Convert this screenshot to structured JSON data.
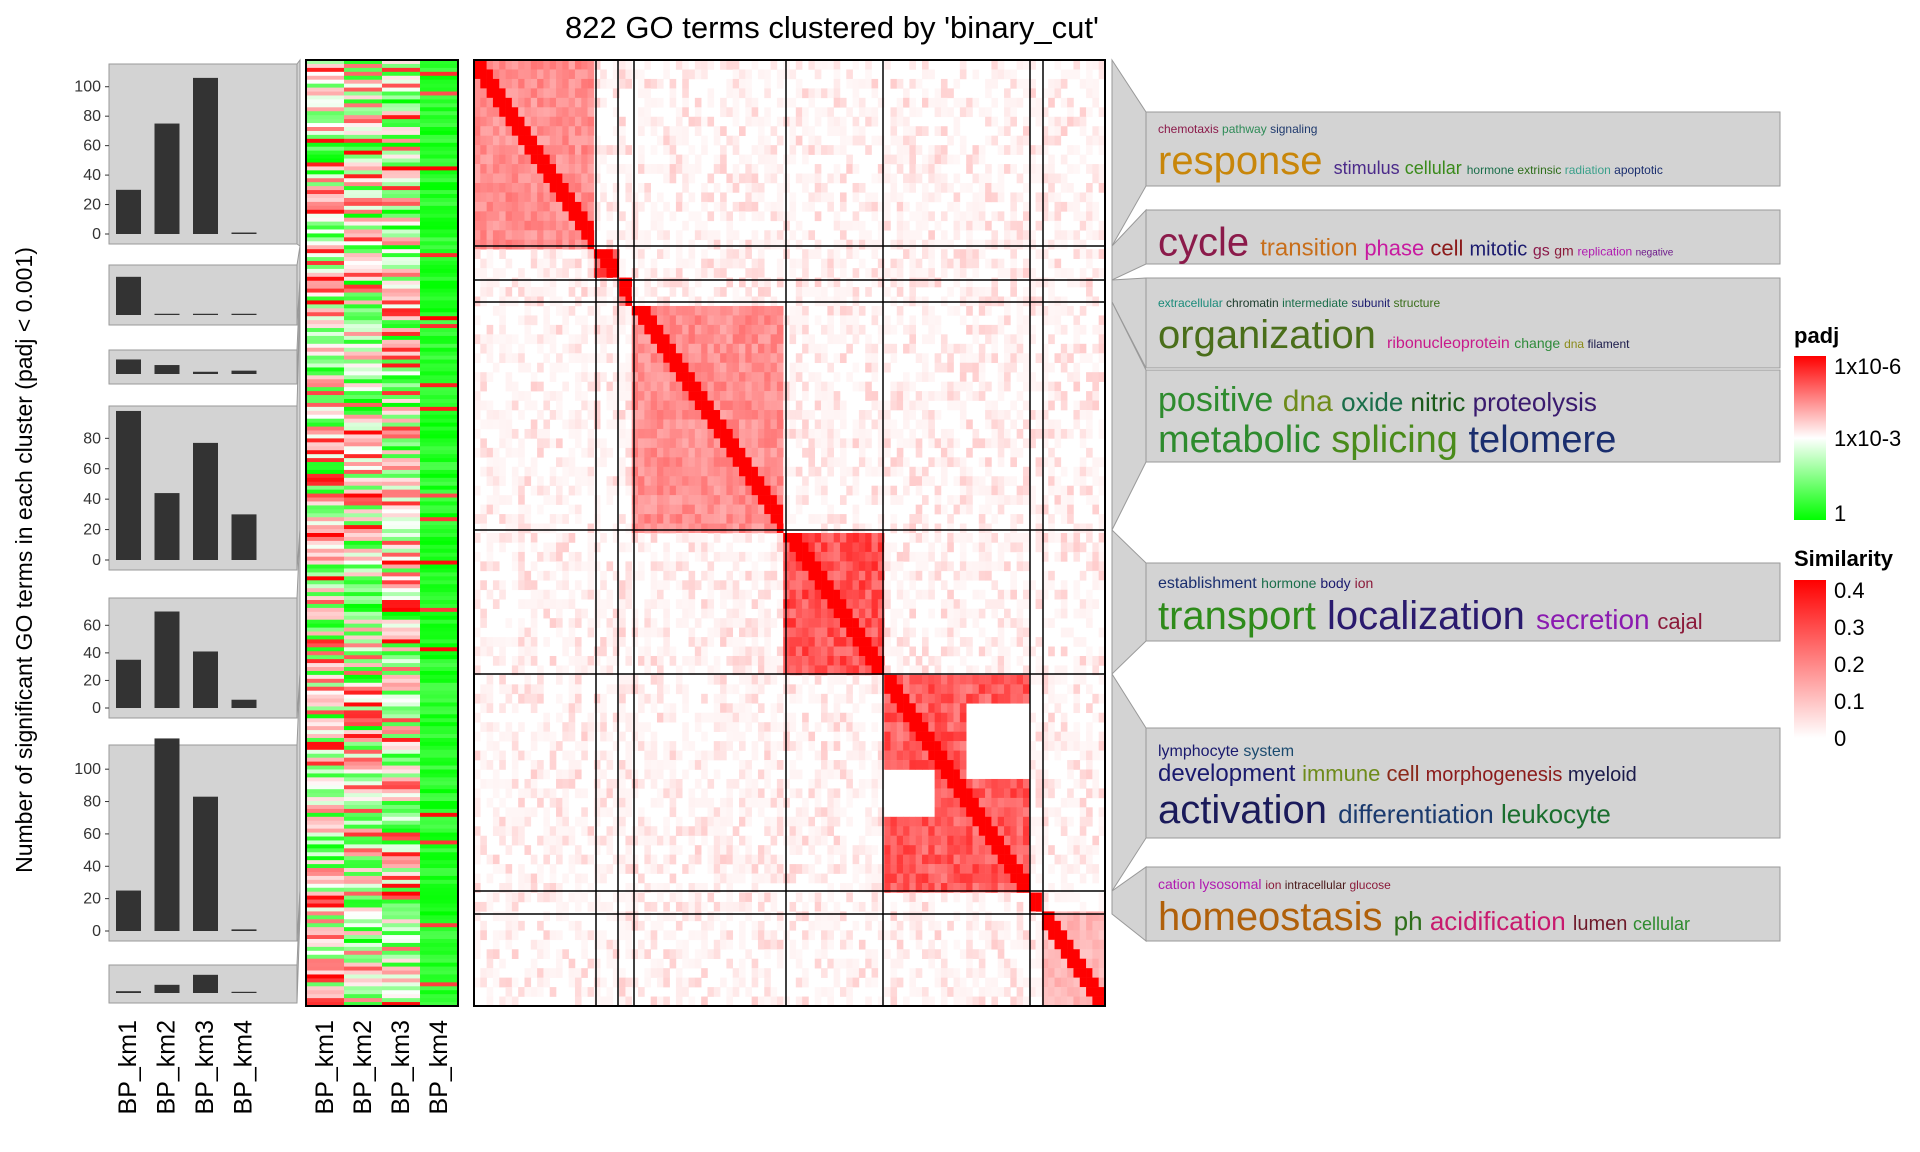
{
  "chart_data": {
    "type": "heatmap",
    "title": "822 GO terms clustered by 'binary_cut'",
    "ylabel": "Number of significant GO terms in each cluster (padj < 0.001)",
    "columns": [
      "BP_km1",
      "BP_km2",
      "BP_km3",
      "BP_km4"
    ],
    "clusters": [
      {
        "name": "",
        "bar_values": [
          30,
          75,
          106,
          1
        ],
        "bar_ticks": [
          0,
          20,
          40,
          60,
          80,
          100
        ],
        "words": [
          {
            "text": "chemotaxis",
            "size": 12,
            "color": "#8b1a4a"
          },
          {
            "text": "pathway",
            "size": 12,
            "color": "#2e8b57"
          },
          {
            "text": "signaling",
            "size": 12,
            "color": "#1f3a6e"
          },
          {
            "text": "response",
            "size": 40,
            "color": "#c8860a"
          },
          {
            "text": "stimulus",
            "size": 18,
            "color": "#4b2a8a"
          },
          {
            "text": "cellular",
            "size": 18,
            "color": "#3a8a1a"
          },
          {
            "text": "hormone",
            "size": 12,
            "color": "#1a6e4a"
          },
          {
            "text": "extrinsic",
            "size": 12,
            "color": "#2e6e1a"
          },
          {
            "text": "radiation",
            "size": 12,
            "color": "#3aa08a"
          },
          {
            "text": "apoptotic",
            "size": 12,
            "color": "#1a2e6e"
          }
        ]
      },
      {
        "name": "",
        "bar_values": [
          31,
          1,
          1,
          1
        ],
        "bar_ticks": [],
        "words": [
          {
            "text": "cycle",
            "size": 40,
            "color": "#8b1a4a"
          },
          {
            "text": "transition",
            "size": 24,
            "color": "#c86e1a"
          },
          {
            "text": "phase",
            "size": 22,
            "color": "#c81aa0"
          },
          {
            "text": "cell",
            "size": 22,
            "color": "#8b1a1a"
          },
          {
            "text": "mitotic",
            "size": 20,
            "color": "#1a1a6e"
          },
          {
            "text": "gs",
            "size": 16,
            "color": "#8b1a4a"
          },
          {
            "text": "gm",
            "size": 14,
            "color": "#8b1a3a"
          },
          {
            "text": "replication",
            "size": 12,
            "color": "#b01ab0"
          },
          {
            "text": "negative",
            "size": 10,
            "color": "#6e1a8b"
          }
        ]
      },
      {
        "name": "",
        "bar_values": [
          13,
          8,
          2,
          3
        ],
        "bar_ticks": [],
        "words": [
          {
            "text": "extracellular",
            "size": 12,
            "color": "#1a8b7a"
          },
          {
            "text": "chromatin",
            "size": 12,
            "color": "#1a3a2a"
          },
          {
            "text": "intermediate",
            "size": 12,
            "color": "#1a6e4a"
          },
          {
            "text": "subunit",
            "size": 12,
            "color": "#1a1a6e"
          },
          {
            "text": "structure",
            "size": 12,
            "color": "#3a6e1a"
          },
          {
            "text": "organization",
            "size": 40,
            "color": "#4a6e1a"
          },
          {
            "text": "ribonucleoprotein",
            "size": 16,
            "color": "#c81a8b"
          },
          {
            "text": "change",
            "size": 14,
            "color": "#2e8b3a"
          },
          {
            "text": "dna",
            "size": 12,
            "color": "#8b8b1a"
          },
          {
            "text": "filament",
            "size": 12,
            "color": "#1a1a4a"
          }
        ]
      },
      {
        "name": "",
        "bar_values": [
          98,
          44,
          77,
          30
        ],
        "bar_ticks": [
          0,
          20,
          40,
          60,
          80
        ],
        "words": [
          {
            "text": "positive",
            "size": 34,
            "color": "#2e8b2e"
          },
          {
            "text": "dna",
            "size": 30,
            "color": "#6e8b1a"
          },
          {
            "text": "oxide",
            "size": 26,
            "color": "#1a6e4a"
          },
          {
            "text": "nitric",
            "size": 26,
            "color": "#1a5a1a"
          },
          {
            "text": "proteolysis",
            "size": 26,
            "color": "#3a1a6e"
          },
          {
            "text": "metabolic",
            "size": 38,
            "color": "#2e8b2e"
          },
          {
            "text": "splicing",
            "size": 38,
            "color": "#4a8b1a"
          },
          {
            "text": "telomere",
            "size": 38,
            "color": "#1a2e6e"
          }
        ]
      },
      {
        "name": "",
        "bar_values": [
          35,
          70,
          41,
          6
        ],
        "bar_ticks": [
          0,
          20,
          40,
          60
        ],
        "words": [
          {
            "text": "establishment",
            "size": 16,
            "color": "#1a2e6e"
          },
          {
            "text": "hormone",
            "size": 14,
            "color": "#1a6e4a"
          },
          {
            "text": "body",
            "size": 14,
            "color": "#1a1a6e"
          },
          {
            "text": "ion",
            "size": 14,
            "color": "#8b1a3a"
          },
          {
            "text": "transport",
            "size": 40,
            "color": "#2e8b1a"
          },
          {
            "text": "localization",
            "size": 40,
            "color": "#2a1a6e"
          },
          {
            "text": "secretion",
            "size": 28,
            "color": "#8b1ab0"
          },
          {
            "text": "cajal",
            "size": 22,
            "color": "#8b1a3a"
          }
        ]
      },
      {
        "name": "",
        "bar_values": [
          25,
          119,
          83,
          1
        ],
        "bar_ticks": [
          0,
          20,
          40,
          60,
          80,
          100
        ],
        "words": [
          {
            "text": "lymphocyte",
            "size": 16,
            "color": "#1a1a6e"
          },
          {
            "text": "system",
            "size": 16,
            "color": "#1a4a6e"
          },
          {
            "text": "development",
            "size": 24,
            "color": "#1a1a6e"
          },
          {
            "text": "immune",
            "size": 22,
            "color": "#6e8b1a"
          },
          {
            "text": "cell",
            "size": 22,
            "color": "#8b2a1a"
          },
          {
            "text": "morphogenesis",
            "size": 20,
            "color": "#8b1a1a"
          },
          {
            "text": "myeloid",
            "size": 20,
            "color": "#1a1a4a"
          },
          {
            "text": "activation",
            "size": 40,
            "color": "#1a1a5a"
          },
          {
            "text": "differentiation",
            "size": 26,
            "color": "#1a3a6e"
          },
          {
            "text": "leukocyte",
            "size": 26,
            "color": "#1a6e2e"
          }
        ]
      },
      {
        "name": "",
        "bar_values": [
          2,
          9,
          20,
          1
        ],
        "bar_ticks": [],
        "words": [
          {
            "text": "cation",
            "size": 14,
            "color": "#b01ab0"
          },
          {
            "text": "lysosomal",
            "size": 14,
            "color": "#b01ab0"
          },
          {
            "text": "ion",
            "size": 12,
            "color": "#8b1a3a"
          },
          {
            "text": "intracellular",
            "size": 12,
            "color": "#4a1a1a"
          },
          {
            "text": "glucose",
            "size": 12,
            "color": "#8b1a3a"
          },
          {
            "text": "homeostasis",
            "size": 40,
            "color": "#b0600a"
          },
          {
            "text": "ph",
            "size": 26,
            "color": "#2e6e1a"
          },
          {
            "text": "acidification",
            "size": 26,
            "color": "#c81a6e"
          },
          {
            "text": "lumen",
            "size": 20,
            "color": "#6e1a2a"
          },
          {
            "text": "cellular",
            "size": 18,
            "color": "#2e8b2e"
          }
        ]
      }
    ],
    "padj_legend": {
      "title": "padj",
      "labels": [
        "1x10-6",
        "1x10-3",
        "1"
      ],
      "colors": [
        "#ff0000",
        "#ffffff",
        "#00ff00"
      ]
    },
    "similarity_legend": {
      "title": "Similarity",
      "ticks": [
        "0.4",
        "0.3",
        "0.2",
        "0.1",
        "0"
      ],
      "colors": [
        "#ff0000",
        "#ffffff"
      ]
    }
  }
}
